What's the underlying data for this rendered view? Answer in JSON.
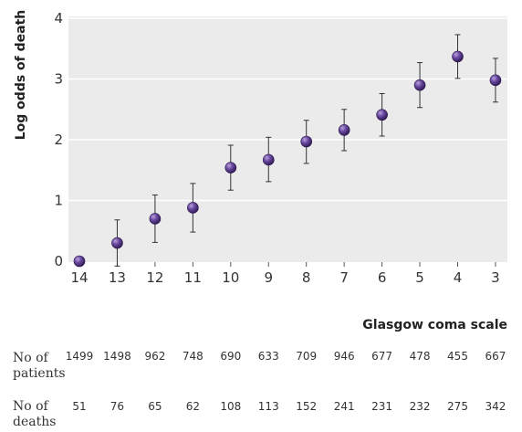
{
  "chart_data": {
    "type": "scatter",
    "title": "",
    "ylabel": "Log odds of death",
    "xlabel": "Glasgow coma scale",
    "ylim": [
      0,
      4
    ],
    "yticks": [
      "0",
      "1",
      "2",
      "3",
      "4"
    ],
    "grid": true,
    "categories": [
      "14",
      "13",
      "12",
      "11",
      "10",
      "9",
      "8",
      "7",
      "6",
      "5",
      "4",
      "3"
    ],
    "values": [
      0,
      0.3,
      0.7,
      0.88,
      1.54,
      1.67,
      1.97,
      2.16,
      2.41,
      2.9,
      3.37,
      2.98
    ],
    "ci_lower": [
      null,
      -0.08,
      0.31,
      0.48,
      1.17,
      1.31,
      1.61,
      1.82,
      2.06,
      2.53,
      3.01,
      2.62
    ],
    "ci_upper": [
      null,
      0.68,
      1.09,
      1.28,
      1.91,
      2.04,
      2.32,
      2.5,
      2.76,
      3.27,
      3.73,
      3.34
    ],
    "point_color": "#4a2d7a",
    "error_color": "#333333",
    "grid_color": "#ffffff",
    "plot_background": "#ebebeb"
  },
  "table": {
    "rows": [
      {
        "label_line1": "No of",
        "label_line2": "patients",
        "values": [
          "1499",
          "1498",
          "962",
          "748",
          "690",
          "633",
          "709",
          "946",
          "677",
          "478",
          "455",
          "667"
        ]
      },
      {
        "label_line1": "No of",
        "label_line2": "deaths",
        "values": [
          "51",
          "76",
          "65",
          "62",
          "108",
          "113",
          "152",
          "241",
          "231",
          "232",
          "275",
          "342"
        ]
      }
    ]
  }
}
